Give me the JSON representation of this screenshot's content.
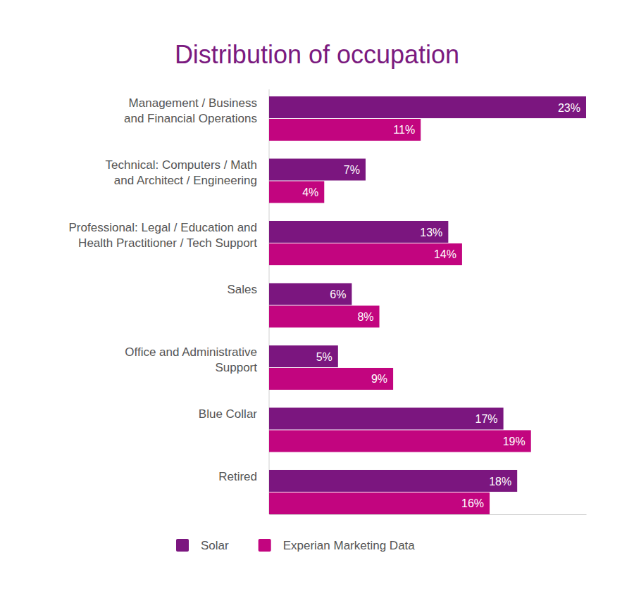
{
  "chart_data": {
    "type": "bar",
    "orientation": "horizontal",
    "title": "Distribution of occupation",
    "categories": [
      "Management / Business\nand Financial Operations",
      "Technical: Computers / Math\nand Architect / Engineering",
      "Professional: Legal / Education and\nHealth Practitioner / Tech Support",
      "Sales",
      "Office and Administrative\nSupport",
      "Blue Collar",
      "Retired"
    ],
    "series": [
      {
        "name": "Solar",
        "color": "#7b167f",
        "values": [
          23,
          7,
          13,
          6,
          5,
          17,
          18
        ],
        "value_labels": [
          "23%",
          "7%",
          "13%",
          "6%",
          "5%",
          "17%",
          "18%"
        ]
      },
      {
        "name": "Experian Marketing Data",
        "color": "#c2057f",
        "values": [
          11,
          4,
          14,
          8,
          9,
          19,
          16
        ],
        "value_labels": [
          "11%",
          "4%",
          "14%",
          "8%",
          "9%",
          "19%",
          "16%"
        ]
      }
    ],
    "xlim": [
      0,
      23
    ],
    "data_labels": true,
    "tick_labels": false,
    "grid": false,
    "legend": "bottom"
  }
}
